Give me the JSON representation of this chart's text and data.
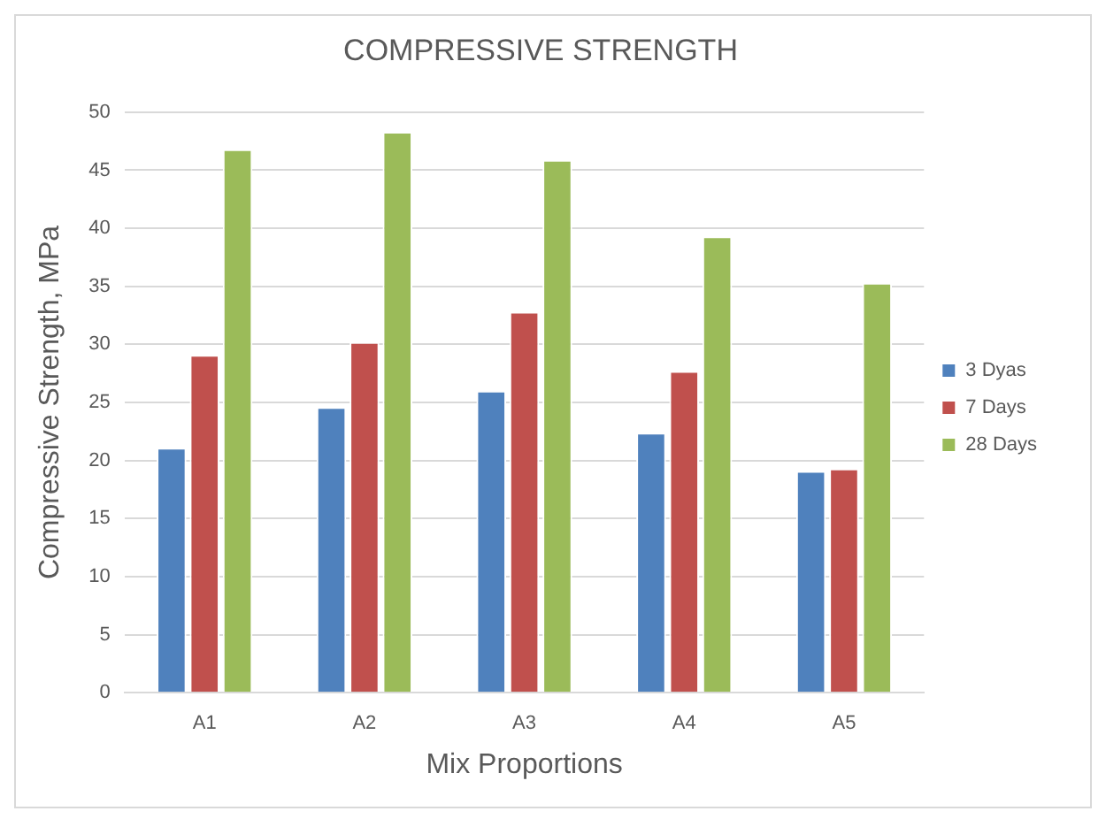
{
  "chart_data": {
    "type": "bar",
    "title": "COMPRESSIVE STRENGTH",
    "xlabel": "Mix Proportions",
    "ylabel": "Compressive Strength, MPa",
    "categories": [
      "A1",
      "A2",
      "A3",
      "A4",
      "A5"
    ],
    "series": [
      {
        "name": "3 Dyas",
        "color": "#4f81bd",
        "values": [
          21.1,
          24.6,
          26.0,
          22.4,
          19.1
        ]
      },
      {
        "name": "7 Days",
        "color": "#c0504d",
        "values": [
          29.1,
          30.2,
          32.8,
          27.7,
          19.3
        ]
      },
      {
        "name": "28 Days",
        "color": "#9bbb59",
        "values": [
          46.8,
          48.3,
          45.9,
          39.3,
          35.3
        ]
      }
    ],
    "ylim": [
      0,
      50
    ],
    "yticks": [
      0,
      5,
      10,
      15,
      20,
      25,
      30,
      35,
      40,
      45,
      50
    ],
    "grid": "y",
    "legend": "right"
  }
}
